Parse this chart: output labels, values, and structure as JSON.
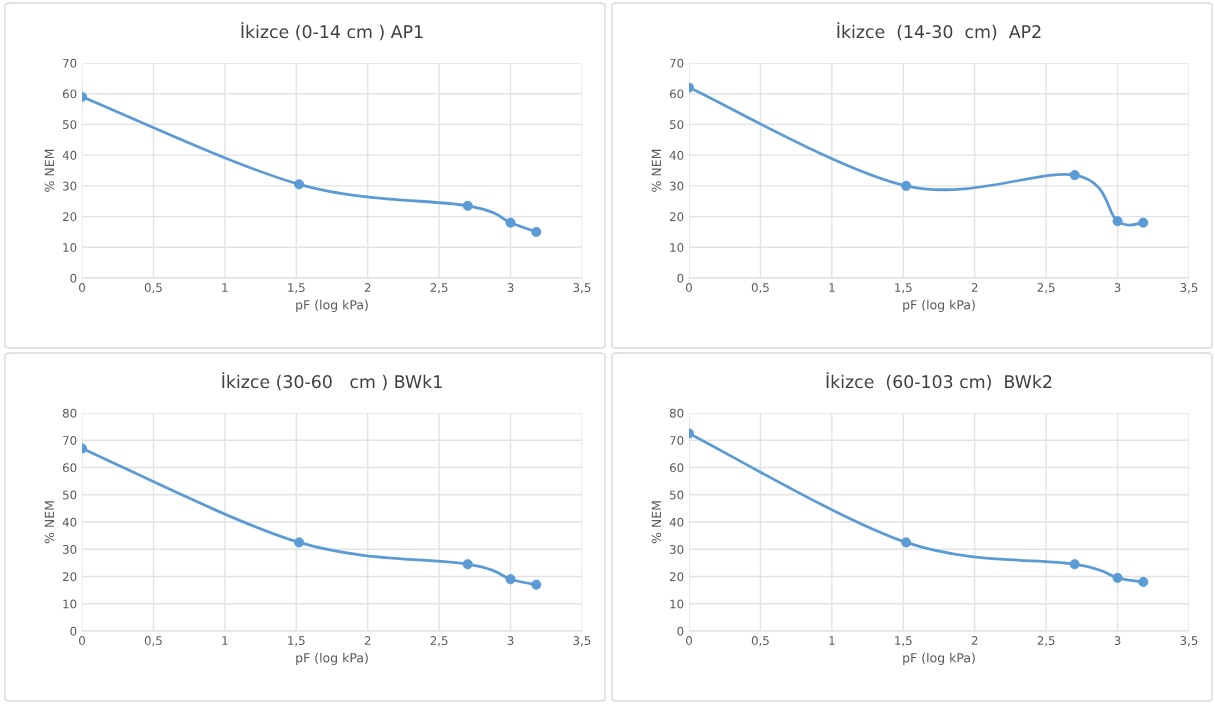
{
  "chart_data": [
    {
      "type": "line",
      "title": "İkizce (0-14 cm ) AP1",
      "xlabel": "pF (log kPa)",
      "ylabel": "% NEM",
      "x": [
        0,
        1.52,
        2.7,
        3.0,
        3.18
      ],
      "series": [
        {
          "color": "#5b9bd5",
          "values": [
            59,
            30.5,
            23.5,
            18,
            15
          ]
        }
      ],
      "xlim": [
        0,
        3.5
      ],
      "xticks": [
        0,
        {
          "value": 0.5,
          "label": "0,5"
        },
        1,
        {
          "value": 1.5,
          "label": "1,5"
        },
        2,
        {
          "value": 2.5,
          "label": "2,5"
        },
        3,
        {
          "value": 3.5,
          "label": "3,5"
        }
      ],
      "ylim": [
        0,
        70
      ],
      "yticks": [
        0,
        10,
        20,
        30,
        40,
        50,
        60,
        70
      ],
      "grid": true,
      "marker": "circle",
      "line_style": "solid"
    },
    {
      "type": "line",
      "title": "İkizce  (14-30  cm)  AP2",
      "xlabel": "pF (log kPa)",
      "ylabel": "% NEM",
      "x": [
        0,
        1.52,
        2.7,
        3.0,
        3.18
      ],
      "series": [
        {
          "color": "#5b9bd5",
          "values": [
            62,
            30,
            33.5,
            18.5,
            18
          ]
        }
      ],
      "xlim": [
        0,
        3.5
      ],
      "xticks": [
        0,
        {
          "value": 0.5,
          "label": "0,5"
        },
        1,
        {
          "value": 1.5,
          "label": "1,5"
        },
        2,
        {
          "value": 2.5,
          "label": "2,5"
        },
        3,
        {
          "value": 3.5,
          "label": "3,5"
        }
      ],
      "ylim": [
        0,
        70
      ],
      "yticks": [
        0,
        10,
        20,
        30,
        40,
        50,
        60,
        70
      ],
      "grid": true,
      "marker": "circle",
      "line_style": "solid"
    },
    {
      "type": "line",
      "title": "İkizce (30-60   cm ) BWk1",
      "xlabel": "pF (log kPa)",
      "ylabel": "% NEM",
      "x": [
        0,
        1.52,
        2.7,
        3.0,
        3.18
      ],
      "series": [
        {
          "color": "#5b9bd5",
          "values": [
            67,
            32.5,
            24.5,
            19,
            17
          ]
        }
      ],
      "xlim": [
        0,
        3.5
      ],
      "xticks": [
        0,
        {
          "value": 0.5,
          "label": "0,5"
        },
        1,
        {
          "value": 1.5,
          "label": "1,5"
        },
        2,
        {
          "value": 2.5,
          "label": "2,5"
        },
        3,
        {
          "value": 3.5,
          "label": "3,5"
        }
      ],
      "ylim": [
        0,
        80
      ],
      "yticks": [
        0,
        10,
        20,
        30,
        40,
        50,
        60,
        70,
        80
      ],
      "grid": true,
      "marker": "circle",
      "line_style": "solid"
    },
    {
      "type": "line",
      "title": "İkizce  (60-103 cm)  BWk2",
      "xlabel": "pF (log kPa)",
      "ylabel": "% NEM",
      "x": [
        0,
        1.52,
        2.7,
        3.0,
        3.18
      ],
      "series": [
        {
          "color": "#5b9bd5",
          "values": [
            72.5,
            32.5,
            24.5,
            19.5,
            18
          ]
        }
      ],
      "xlim": [
        0,
        3.5
      ],
      "xticks": [
        0,
        {
          "value": 0.5,
          "label": "0,5"
        },
        1,
        {
          "value": 1.5,
          "label": "1,5"
        },
        2,
        {
          "value": 2.5,
          "label": "2,5"
        },
        3,
        {
          "value": 3.5,
          "label": "3,5"
        }
      ],
      "ylim": [
        0,
        80
      ],
      "yticks": [
        0,
        10,
        20,
        30,
        40,
        50,
        60,
        70,
        80
      ],
      "grid": true,
      "marker": "circle",
      "line_style": "solid"
    }
  ]
}
